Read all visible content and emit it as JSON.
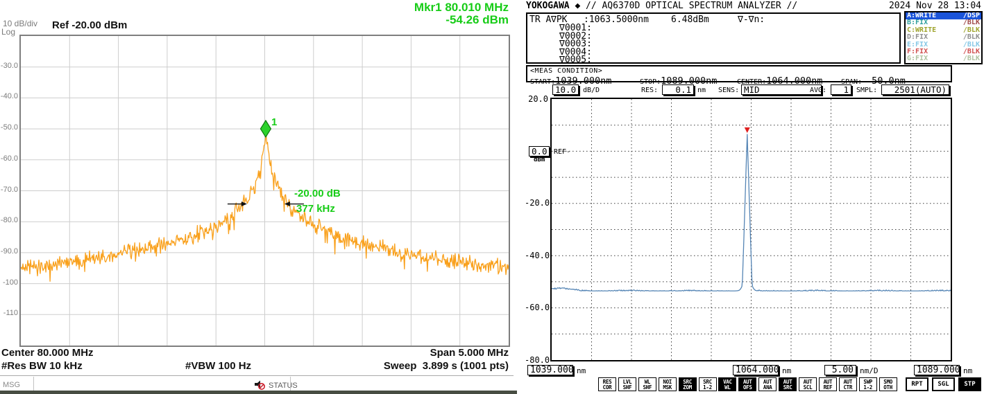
{
  "left_panel": {
    "marker_readout": {
      "line1": "Mkr1 80.010 MHz",
      "line2": "-54.26 dBm"
    },
    "axis": {
      "scale": "10 dB/div",
      "mode": "Log",
      "ref": "Ref -20.00 dBm",
      "y_ticks": [
        "-30.0",
        "-40.0",
        "-50.0",
        "-60.0",
        "-70.0",
        "-80.0",
        "-90.0",
        "-100",
        "-110"
      ]
    },
    "marker_label": "1",
    "annotation": {
      "delta_level": "-20.00 dB",
      "delta_freq": "377 kHz"
    },
    "footer": {
      "center": "Center 80.000 MHz",
      "span": "Span 5.000 MHz",
      "res_bw": "#Res BW 10 kHz",
      "vbw": "#VBW 100 Hz",
      "sweep": "Sweep  3.899 s (1001 pts)"
    },
    "status_bar": {
      "msg": "MSG",
      "status": "STATUS"
    },
    "colors": {
      "trace": "#F9A01B",
      "green": "#17CC17",
      "grid_line": "#CDCDCD",
      "grid_border": "#7E7E7E",
      "gray_text": "#7B7B7B",
      "marker_fill": "#2BD22B",
      "marker_edge": "#0E7A0E",
      "mute_red": "#CC2230"
    }
  },
  "right_panel": {
    "header": {
      "brand": "YOKOGAWA ◆",
      "model": "// AQ6370D OPTICAL SPECTRUM ANALYZER //",
      "datetime": "2024 Nov 28 13:04"
    },
    "trace_info": {
      "trace": "TR A",
      "mode": "∇PK",
      "wavelength": ":1063.5000nm",
      "power": "6.48dBm",
      "delta_header": "∇-∇n:",
      "marker_rows": [
        "∇0001:",
        "∇0002:",
        "∇0003:",
        "∇0004:",
        "∇0005:"
      ]
    },
    "legend": [
      {
        "label": "A:WRITE",
        "status": "/DSP",
        "selected": true,
        "color": "#FFFFFF",
        "status_color": "#FFFFFF",
        "bg": "#1B54D9"
      },
      {
        "label": "B:FIX",
        "status": "/BLK",
        "selected": false,
        "color": "#2E9E9E",
        "status_color": "#A04A4A",
        "bg": ""
      },
      {
        "label": "C:WRITE",
        "status": "/BLK",
        "selected": false,
        "color": "#9FA42E",
        "status_color": "#9FA42E",
        "bg": ""
      },
      {
        "label": "D:FIX",
        "status": "/BLK",
        "selected": false,
        "color": "#8F8F8F",
        "status_color": "#8F8F8F",
        "bg": ""
      },
      {
        "label": "E:FIX",
        "status": "/BLK",
        "selected": false,
        "color": "#86C8E6",
        "status_color": "#86C8E6",
        "bg": ""
      },
      {
        "label": "F:FIX",
        "status": "/BLK",
        "selected": false,
        "color": "#D05050",
        "status_color": "#D05050",
        "bg": ""
      },
      {
        "label": "G:FIX",
        "status": "/BLK",
        "selected": false,
        "color": "#AFC3A0",
        "status_color": "#AFC3A0",
        "bg": ""
      }
    ],
    "meas_condition": {
      "title": "<MEAS CONDITION>",
      "fields": [
        {
          "label": "START:",
          "value": "1039.000nm"
        },
        {
          "label": "STOP:",
          "value": "1089.000nm"
        },
        {
          "label": "CENTER:",
          "value": "1064.000nm"
        },
        {
          "label": "SPAN:",
          "value": "50.0nm"
        }
      ]
    },
    "settings": [
      {
        "label": "",
        "value": "10.0",
        "unit": "dB/D"
      },
      {
        "label": "RES:",
        "value": "0.1",
        "unit": "nm"
      },
      {
        "label": "SENS:",
        "value": "MID",
        "unit": ""
      },
      {
        "label": "AVG:",
        "value": "1",
        "unit": ""
      },
      {
        "label": "SMPL:",
        "value": "2501(AUTO)",
        "unit": ""
      }
    ],
    "y_axis": {
      "top": "20.0",
      "ref_value": "0.0",
      "ref_unit": "dBm",
      "ref_text": "REF-",
      "ticks": [
        "-20.0",
        "-40.0",
        "-60.0",
        "-80.0"
      ]
    },
    "x_axis": {
      "start": "1039.000",
      "start_unit": "nm",
      "center": "1064.000",
      "center_unit": "nm",
      "scale": "5.00",
      "scale_unit": "nm/D",
      "stop": "1089.000",
      "stop_unit": "nm"
    },
    "softkeys": [
      {
        "top": "RES",
        "bottom": "COR",
        "inverted": false
      },
      {
        "top": "LVL",
        "bottom": "SHF",
        "inverted": false
      },
      {
        "top": "WL",
        "bottom": "SHF",
        "inverted": false
      },
      {
        "top": "NOI",
        "bottom": "MSK",
        "inverted": false
      },
      {
        "top": "SRC",
        "bottom": "ZOM",
        "inverted": true
      },
      {
        "top": "SRC",
        "bottom": "1-2",
        "inverted": false
      },
      {
        "top": "VAC",
        "bottom": "WL",
        "inverted": true
      },
      {
        "top": "AUT",
        "bottom": "OFS",
        "inverted": true
      },
      {
        "top": "AUT",
        "bottom": "ANA",
        "inverted": false
      },
      {
        "top": "AUT",
        "bottom": "SRC",
        "inverted": true
      },
      {
        "top": "AUT",
        "bottom": "SCL",
        "inverted": false
      },
      {
        "top": "AUT",
        "bottom": "REF",
        "inverted": false
      },
      {
        "top": "AUT",
        "bottom": "CTR",
        "inverted": false
      },
      {
        "top": "SWP",
        "bottom": "1-2",
        "inverted": false
      },
      {
        "top": "SMO",
        "bottom": "OTH",
        "inverted": false
      }
    ],
    "run_buttons": [
      {
        "label": "RPT",
        "inverted": false
      },
      {
        "label": "SGL",
        "inverted": false
      },
      {
        "label": "STP",
        "inverted": true
      }
    ],
    "colors": {
      "trace": "#5585B5",
      "marker": "#E02020",
      "legend_selected_bg": "#1B54D9"
    }
  },
  "chart_data": [
    {
      "type": "line",
      "title": "RF beat-note spectrum",
      "x_unit": "MHz",
      "y_unit": "dBm",
      "x_range": [
        77.5,
        82.5
      ],
      "y_range": [
        -120,
        -20
      ],
      "db_per_div": 10,
      "center_mhz": 80.0,
      "span_mhz": 5.0,
      "marker": {
        "id": "1",
        "freq_mhz": 80.01,
        "level_dbm": -54.26
      },
      "peak": {
        "center_mhz": 80.01,
        "top_dbm": -52.5,
        "bw_20db_khz": 377
      },
      "noise_floor_dbm": -107,
      "ref_level_dbm": -20.0,
      "res_bw": "10 kHz",
      "vbw": "100 Hz",
      "sweep_s": 3.899,
      "points": 1001,
      "grid": "solid 10x10",
      "annotations": [
        "-20.00 dB",
        "377 kHz"
      ]
    },
    {
      "type": "line",
      "title": "Optical spectrum (AQ6370D)",
      "x_unit": "nm",
      "y_unit": "dBm",
      "x_range": [
        1039.0,
        1089.0
      ],
      "y_range": [
        -80,
        20
      ],
      "db_per_div": 10.0,
      "nm_per_div": 5.0,
      "start_nm": 1039.0,
      "stop_nm": 1089.0,
      "center_nm": 1064.0,
      "span_nm": 50.0,
      "peak": {
        "wavelength_nm": 1063.5,
        "level_dbm": 6.48
      },
      "noise_floor_dbm": -53.5,
      "ref_dbm": 0.0,
      "grid": "dashed 10x10",
      "samples": 2501
    }
  ]
}
